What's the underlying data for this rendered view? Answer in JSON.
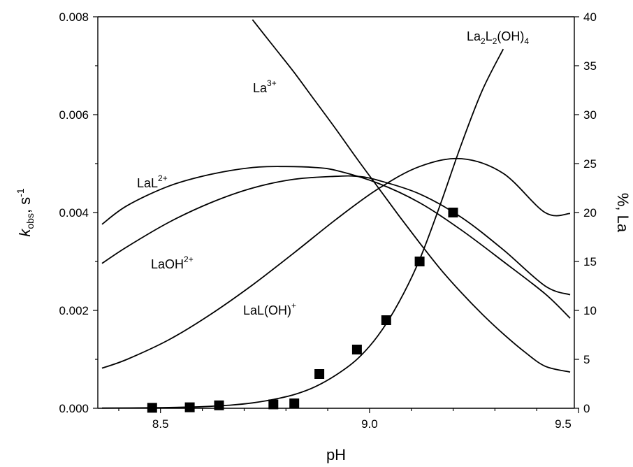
{
  "chart_data": {
    "type": "line",
    "xlabel": "pH",
    "ylabel_left": "kobs, s-1",
    "ylabel_right": "%, La",
    "xlim": [
      8.43,
      9.57
    ],
    "ylim_left": [
      0,
      0.008
    ],
    "ylim_right": [
      0,
      40
    ],
    "x_ticks": [
      "8.5",
      "9.0",
      "9.5"
    ],
    "y_left_ticks": [
      "0.000",
      "0.002",
      "0.004",
      "0.006",
      "0.008"
    ],
    "y_right_ticks": [
      "0",
      "5",
      "10",
      "15",
      "20",
      "25",
      "30",
      "35",
      "40"
    ],
    "scatter": {
      "axis": "left",
      "x": [
        8.56,
        8.65,
        8.72,
        8.85,
        8.9,
        8.96,
        9.05,
        9.12,
        9.2,
        9.28
      ],
      "y": [
        1e-05,
        2e-05,
        6e-05,
        8e-05,
        0.0001,
        0.0007,
        0.0012,
        0.0018,
        0.003,
        0.004
      ]
    },
    "series": [
      {
        "name": "La3+",
        "axis": "right",
        "x": [
          8.8,
          8.85,
          8.9,
          8.95,
          9.0,
          9.05,
          9.1,
          9.15,
          9.2,
          9.25,
          9.3,
          9.35,
          9.4,
          9.45,
          9.5,
          9.56
        ],
        "y": [
          39.7,
          37.0,
          34.3,
          31.4,
          28.5,
          25.5,
          22.6,
          19.7,
          16.9,
          14.2,
          11.8,
          9.6,
          7.6,
          5.8,
          4.3,
          3.7
        ]
      },
      {
        "name": "LaL2+",
        "axis": "right",
        "x": [
          8.44,
          8.5,
          8.6,
          8.7,
          8.8,
          8.88,
          8.95,
          9.0,
          9.1,
          9.2,
          9.3,
          9.4,
          9.5,
          9.56
        ],
        "y": [
          18.8,
          20.7,
          22.7,
          23.9,
          24.6,
          24.7,
          24.6,
          24.3,
          23.0,
          21.0,
          18.2,
          15.0,
          11.7,
          9.2
        ]
      },
      {
        "name": "LaOH2+",
        "axis": "right",
        "x": [
          8.44,
          8.5,
          8.6,
          8.7,
          8.8,
          8.9,
          9.0,
          9.05,
          9.1,
          9.2,
          9.3,
          9.4,
          9.5,
          9.56
        ],
        "y": [
          14.8,
          16.5,
          19.0,
          21.0,
          22.5,
          23.4,
          23.7,
          23.7,
          23.3,
          21.9,
          19.5,
          16.2,
          12.5,
          11.6
        ]
      },
      {
        "name": "LaL(OH)+",
        "axis": "right",
        "x": [
          8.44,
          8.5,
          8.6,
          8.7,
          8.8,
          8.9,
          9.0,
          9.1,
          9.2,
          9.3,
          9.4,
          9.5,
          9.56
        ],
        "y": [
          4.1,
          5.0,
          7.0,
          9.6,
          12.6,
          15.9,
          19.3,
          22.4,
          24.7,
          25.5,
          24.0,
          20.0,
          19.9
        ]
      },
      {
        "name": "La2L2(OH)4",
        "axis": "right",
        "x": [
          8.44,
          8.55,
          8.65,
          8.7,
          8.75,
          8.8,
          8.85,
          8.9,
          8.95,
          9.0,
          9.05,
          9.1,
          9.15,
          9.2,
          9.25,
          9.3,
          9.35,
          9.4
        ],
        "y": [
          0.02,
          0.05,
          0.12,
          0.2,
          0.33,
          0.55,
          0.9,
          1.4,
          2.2,
          3.4,
          5.0,
          7.4,
          10.8,
          15.2,
          20.9,
          27.0,
          32.5,
          36.7
        ]
      }
    ],
    "annotations": [
      "La3+",
      "LaL2+",
      "LaOH2+",
      "LaL(OH)+",
      "La2L2(OH)4"
    ]
  }
}
